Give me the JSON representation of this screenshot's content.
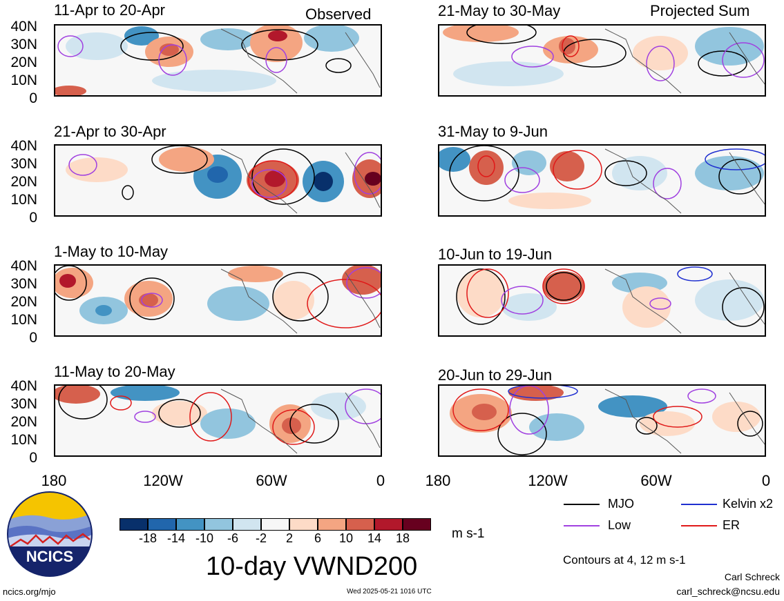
{
  "columns": {
    "left_label": "Observed",
    "right_label": "Projected Sum"
  },
  "panels": [
    {
      "title": "11-Apr to 20-Apr",
      "column": "observed"
    },
    {
      "title": "21-May to 30-May",
      "column": "projected"
    },
    {
      "title": "21-Apr to 30-Apr",
      "column": "observed"
    },
    {
      "title": "31-May to 9-Jun",
      "column": "projected"
    },
    {
      "title": "1-May to 10-May",
      "column": "observed"
    },
    {
      "title": "10-Jun to 19-Jun",
      "column": "projected"
    },
    {
      "title": "11-May to 20-May",
      "column": "observed"
    },
    {
      "title": "20-Jun to 29-Jun",
      "column": "projected"
    }
  ],
  "y_axis_labels": [
    "40N",
    "30N",
    "20N",
    "10N",
    "0"
  ],
  "x_axis_labels": [
    "180",
    "120W",
    "60W",
    "0"
  ],
  "legend": {
    "items": [
      {
        "label": "MJO",
        "color": "#000000"
      },
      {
        "label": "Kelvin x2",
        "color": "#1f2fd0"
      },
      {
        "label": "Low",
        "color": "#a040e0"
      },
      {
        "label": "ER",
        "color": "#e01818"
      }
    ],
    "contours_note": "Contours at 4, 12 m s-1"
  },
  "colorbar": {
    "colors": [
      "#08306b",
      "#2166ac",
      "#4393c3",
      "#92c5de",
      "#d1e5f0",
      "#f7f7f7",
      "#fddbc7",
      "#f4a582",
      "#d6604d",
      "#b2182b",
      "#67001f"
    ],
    "ticks": [
      "-18",
      "-14",
      "-10",
      "-6",
      "-2",
      "2",
      "6",
      "10",
      "14",
      "18"
    ],
    "units": "m s-1"
  },
  "variable_title": "10-day VWND200",
  "logo": {
    "text": "NCICS"
  },
  "footer": {
    "url": "ncics.org/mjo",
    "timestamp": "Wed 2025-05-21 1016 UTC",
    "author": "Carl Schreck",
    "email": "carl_schreck@ncsu.edu"
  }
}
